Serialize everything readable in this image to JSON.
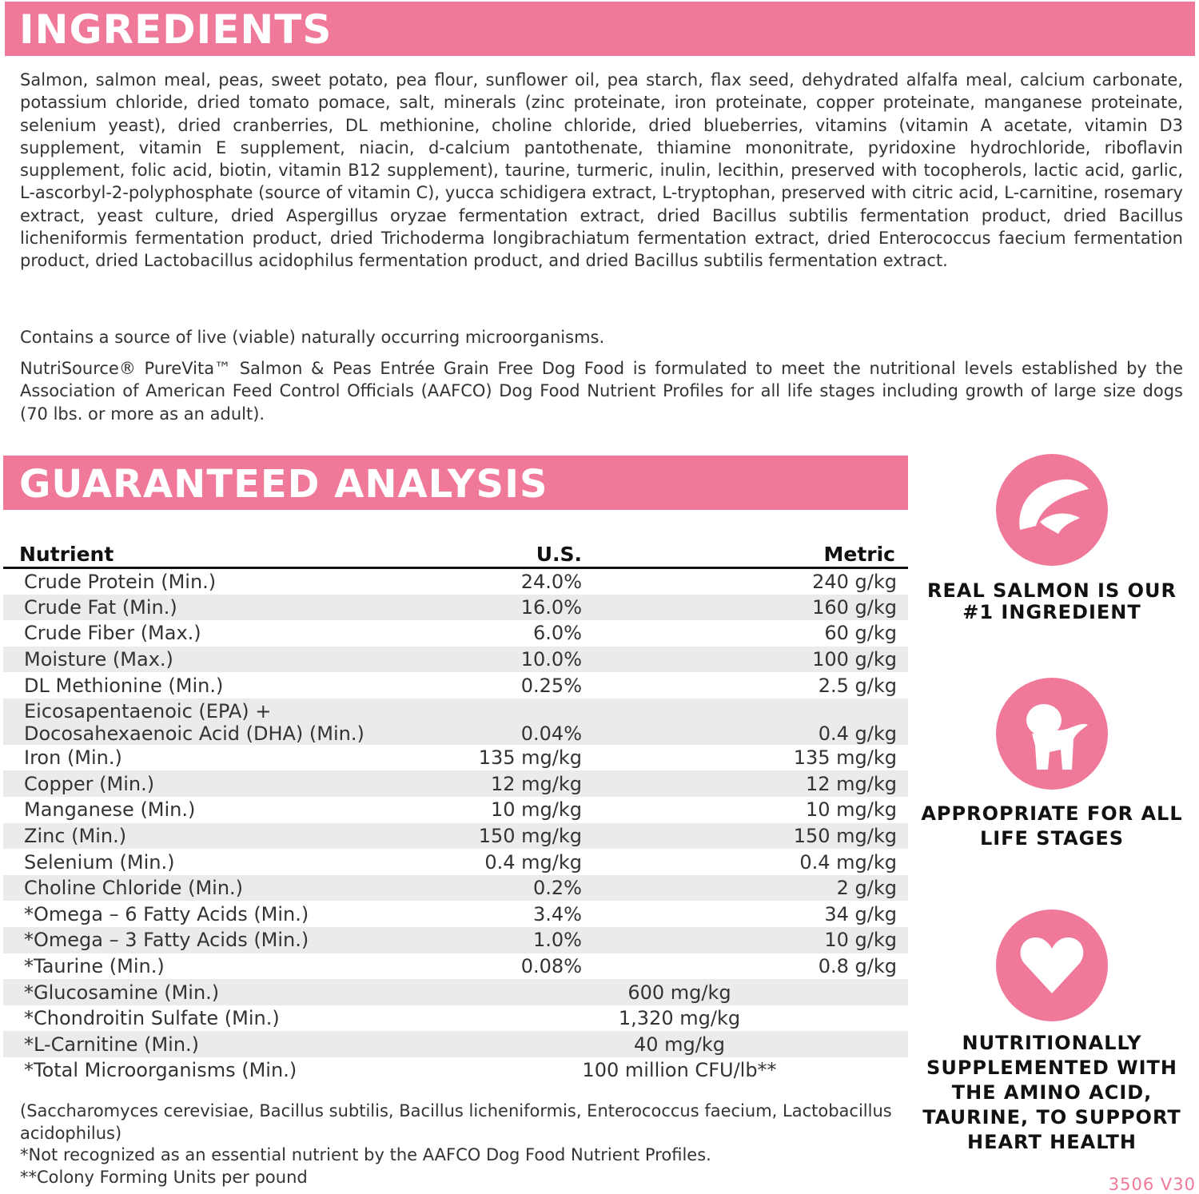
{
  "ingredients": {
    "title": "INGREDIENTS",
    "text": "Salmon, salmon meal, peas, sweet potato, pea flour, sunflower oil, pea starch, flax seed, dehydrated alfalfa meal, calcium carbonate, potassium chloride, dried tomato pomace, salt, minerals (zinc proteinate, iron proteinate, copper proteinate, manganese proteinate, selenium yeast), dried cranberries, DL methionine, choline chloride, dried blueberries, vitamins (vitamin A acetate, vitamin D3 supplement, vitamin E supplement, niacin, d-calcium pantothenate, thiamine mononitrate, pyridoxine hydrochloride, riboflavin supplement, folic acid, biotin, vitamin B12 supplement), taurine, turmeric, inulin, lecithin, preserved with tocopherols, lactic acid, garlic, L-ascorbyl-2-polyphosphate (source of vitamin C), yucca schidigera extract, L-tryptophan, preserved with citric acid, L-carnitine, rosemary extract, yeast culture, dried Aspergillus oryzae fermentation extract, dried Bacillus subtilis fermentation product, dried Bacillus licheniformis fermentation product, dried Trichoderma longibrachiatum fermentation extract, dried Enterococcus faecium fermentation product, dried Lactobacillus acidophilus fermentation product, and dried Bacillus subtilis fermentation extract.",
    "microorganisms": "Contains a source of live (viable) naturally occurring microorganisms.",
    "aafco": "NutriSource® PureVita™ Salmon & Peas Entrée Grain Free Dog Food is formulated to meet the nutritional levels established by the Association of American Feed Control Officials (AAFCO) Dog Food Nutrient Profiles for all life stages including growth of large size dogs (70 lbs. or more as an adult)."
  },
  "analysis": {
    "title": "GUARANTEED ANALYSIS",
    "headers": [
      "Nutrient",
      "U.S.",
      "Metric"
    ],
    "rows": [
      [
        "Crude Protein (Min.)",
        "24.0%",
        "240 g/kg"
      ],
      [
        "Crude Fat (Min.)",
        "16.0%",
        "160 g/kg"
      ],
      [
        "Crude Fiber (Max.)",
        "6.0%",
        "60 g/kg"
      ],
      [
        "Moisture (Max.)",
        "10.0%",
        "100 g/kg"
      ],
      [
        "DL Methionine (Min.)",
        "0.25%",
        "2.5 g/kg"
      ],
      [
        "Eicosapentaenoic (EPA) + Docosahexaenoic Acid (DHA) (Min.)",
        "0.04%",
        "0.4 g/kg"
      ],
      [
        "Iron (Min.)",
        "135 mg/kg",
        "135 mg/kg"
      ],
      [
        "Copper (Min.)",
        "12 mg/kg",
        "12 mg/kg"
      ],
      [
        "Manganese (Min.)",
        "10 mg/kg",
        "10 mg/kg"
      ],
      [
        "Zinc (Min.)",
        "150 mg/kg",
        "150 mg/kg"
      ],
      [
        "Selenium (Min.)",
        "0.4 mg/kg",
        "0.4 mg/kg"
      ],
      [
        "Choline Chloride (Min.)",
        "0.2%",
        "2 g/kg"
      ],
      [
        "*Omega – 6 Fatty Acids (Min.)",
        "3.4%",
        "34 g/kg"
      ],
      [
        "*Omega – 3 Fatty Acids (Min.)",
        "1.0%",
        "10 g/kg"
      ],
      [
        "*Taurine (Min.)",
        "0.08%",
        "0.8 g/kg"
      ]
    ],
    "combined_rows": [
      [
        "*Glucosamine (Min.)",
        "600 mg/kg"
      ],
      [
        "*Chondroitin Sulfate (Min.)",
        "1,320 mg/kg"
      ],
      [
        "*L-Carnitine (Min.)",
        "40 mg/kg"
      ],
      [
        "*Total Microorganisms (Min.)",
        "100 million CFU/lb**"
      ]
    ],
    "notes": [
      "(Saccharomyces cerevisiae, Bacillus subtilis, Bacillus licheniformis, Enterococcus faecium, Lactobacillus acidophilus)",
      "*Not recognized as an essential nutrient by the AAFCO Dog Food Nutrient Profiles.",
      "**Colony Forming Units per pound"
    ]
  },
  "features": [
    {
      "icon": "salmon-icon",
      "text": "REAL SALMON IS OUR #1 INGREDIENT"
    },
    {
      "icon": "puppy-icon",
      "text": "APPROPRIATE FOR ALL LIFE STAGES"
    },
    {
      "icon": "heart-icon",
      "text": "NUTRITIONALLY SUPPLEMENTED WITH THE AMINO ACID, TAURINE, TO SUPPORT HEART HEALTH"
    }
  ],
  "code": "3506 V30",
  "colors": {
    "accent": "#f07899",
    "row_shade": "#ebebeb"
  }
}
